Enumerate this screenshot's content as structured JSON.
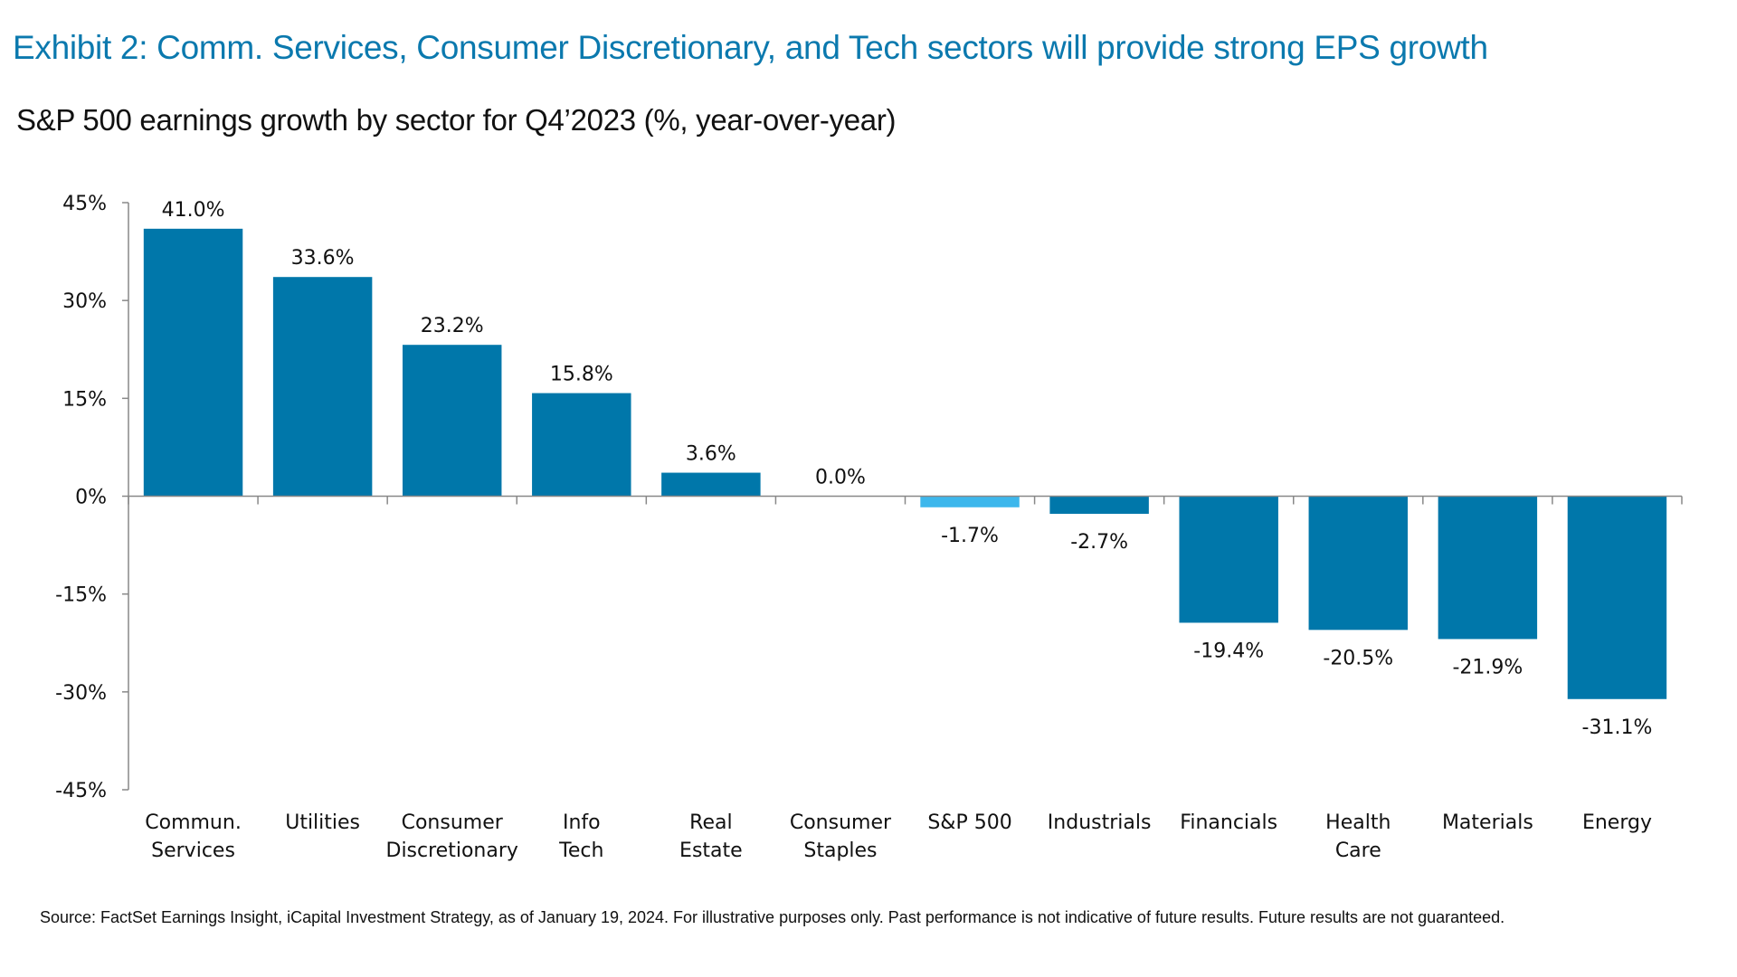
{
  "title": "Exhibit 2: Comm. Services, Consumer Discretionary, and Tech sectors will provide strong EPS growth",
  "subtitle": "S&P 500 earnings growth by sector for Q4’2023 (%, year-over-year)",
  "source": "Source: FactSet Earnings Insight, iCapital Investment Strategy, as of January 19, 2024. For illustrative purposes only. Past performance is not indicative of future results. Future results are not guaranteed.",
  "colors": {
    "bar": "#0077AA",
    "highlight": "#3DB7EC",
    "title": "#0B79AE"
  },
  "chart_data": {
    "type": "bar",
    "title": "S&P 500 earnings growth by sector for Q4’2023 (%, year-over-year)",
    "categories": [
      [
        "Commun.",
        "Services"
      ],
      [
        "Utilities"
      ],
      [
        "Consumer",
        "Discretionary"
      ],
      [
        "Info",
        "Tech"
      ],
      [
        "Real",
        "Estate"
      ],
      [
        "Consumer",
        "Staples"
      ],
      [
        "S&P 500"
      ],
      [
        "Industrials"
      ],
      [
        "Financials"
      ],
      [
        "Health",
        "Care"
      ],
      [
        "Materials"
      ],
      [
        "Energy"
      ]
    ],
    "values": [
      41.0,
      33.6,
      23.2,
      15.8,
      3.6,
      0.0,
      -1.7,
      -2.7,
      -19.4,
      -20.5,
      -21.9,
      -31.1
    ],
    "data_labels": [
      "41.0%",
      "33.6%",
      "23.2%",
      "15.8%",
      "3.6%",
      "0.0%",
      "-1.7%",
      "-2.7%",
      "-19.4%",
      "-20.5%",
      "-21.9%",
      "-31.1%"
    ],
    "highlight_category": "S&P 500",
    "ylim": [
      -45,
      45
    ],
    "yticks": [
      45,
      30,
      15,
      0,
      -15,
      -30,
      -45
    ],
    "ytick_labels": [
      "45%",
      "30%",
      "15%",
      "0%",
      "-15%",
      "-30%",
      "-45%"
    ],
    "xlabel": "",
    "ylabel": "",
    "grid": false,
    "legend": "none"
  }
}
